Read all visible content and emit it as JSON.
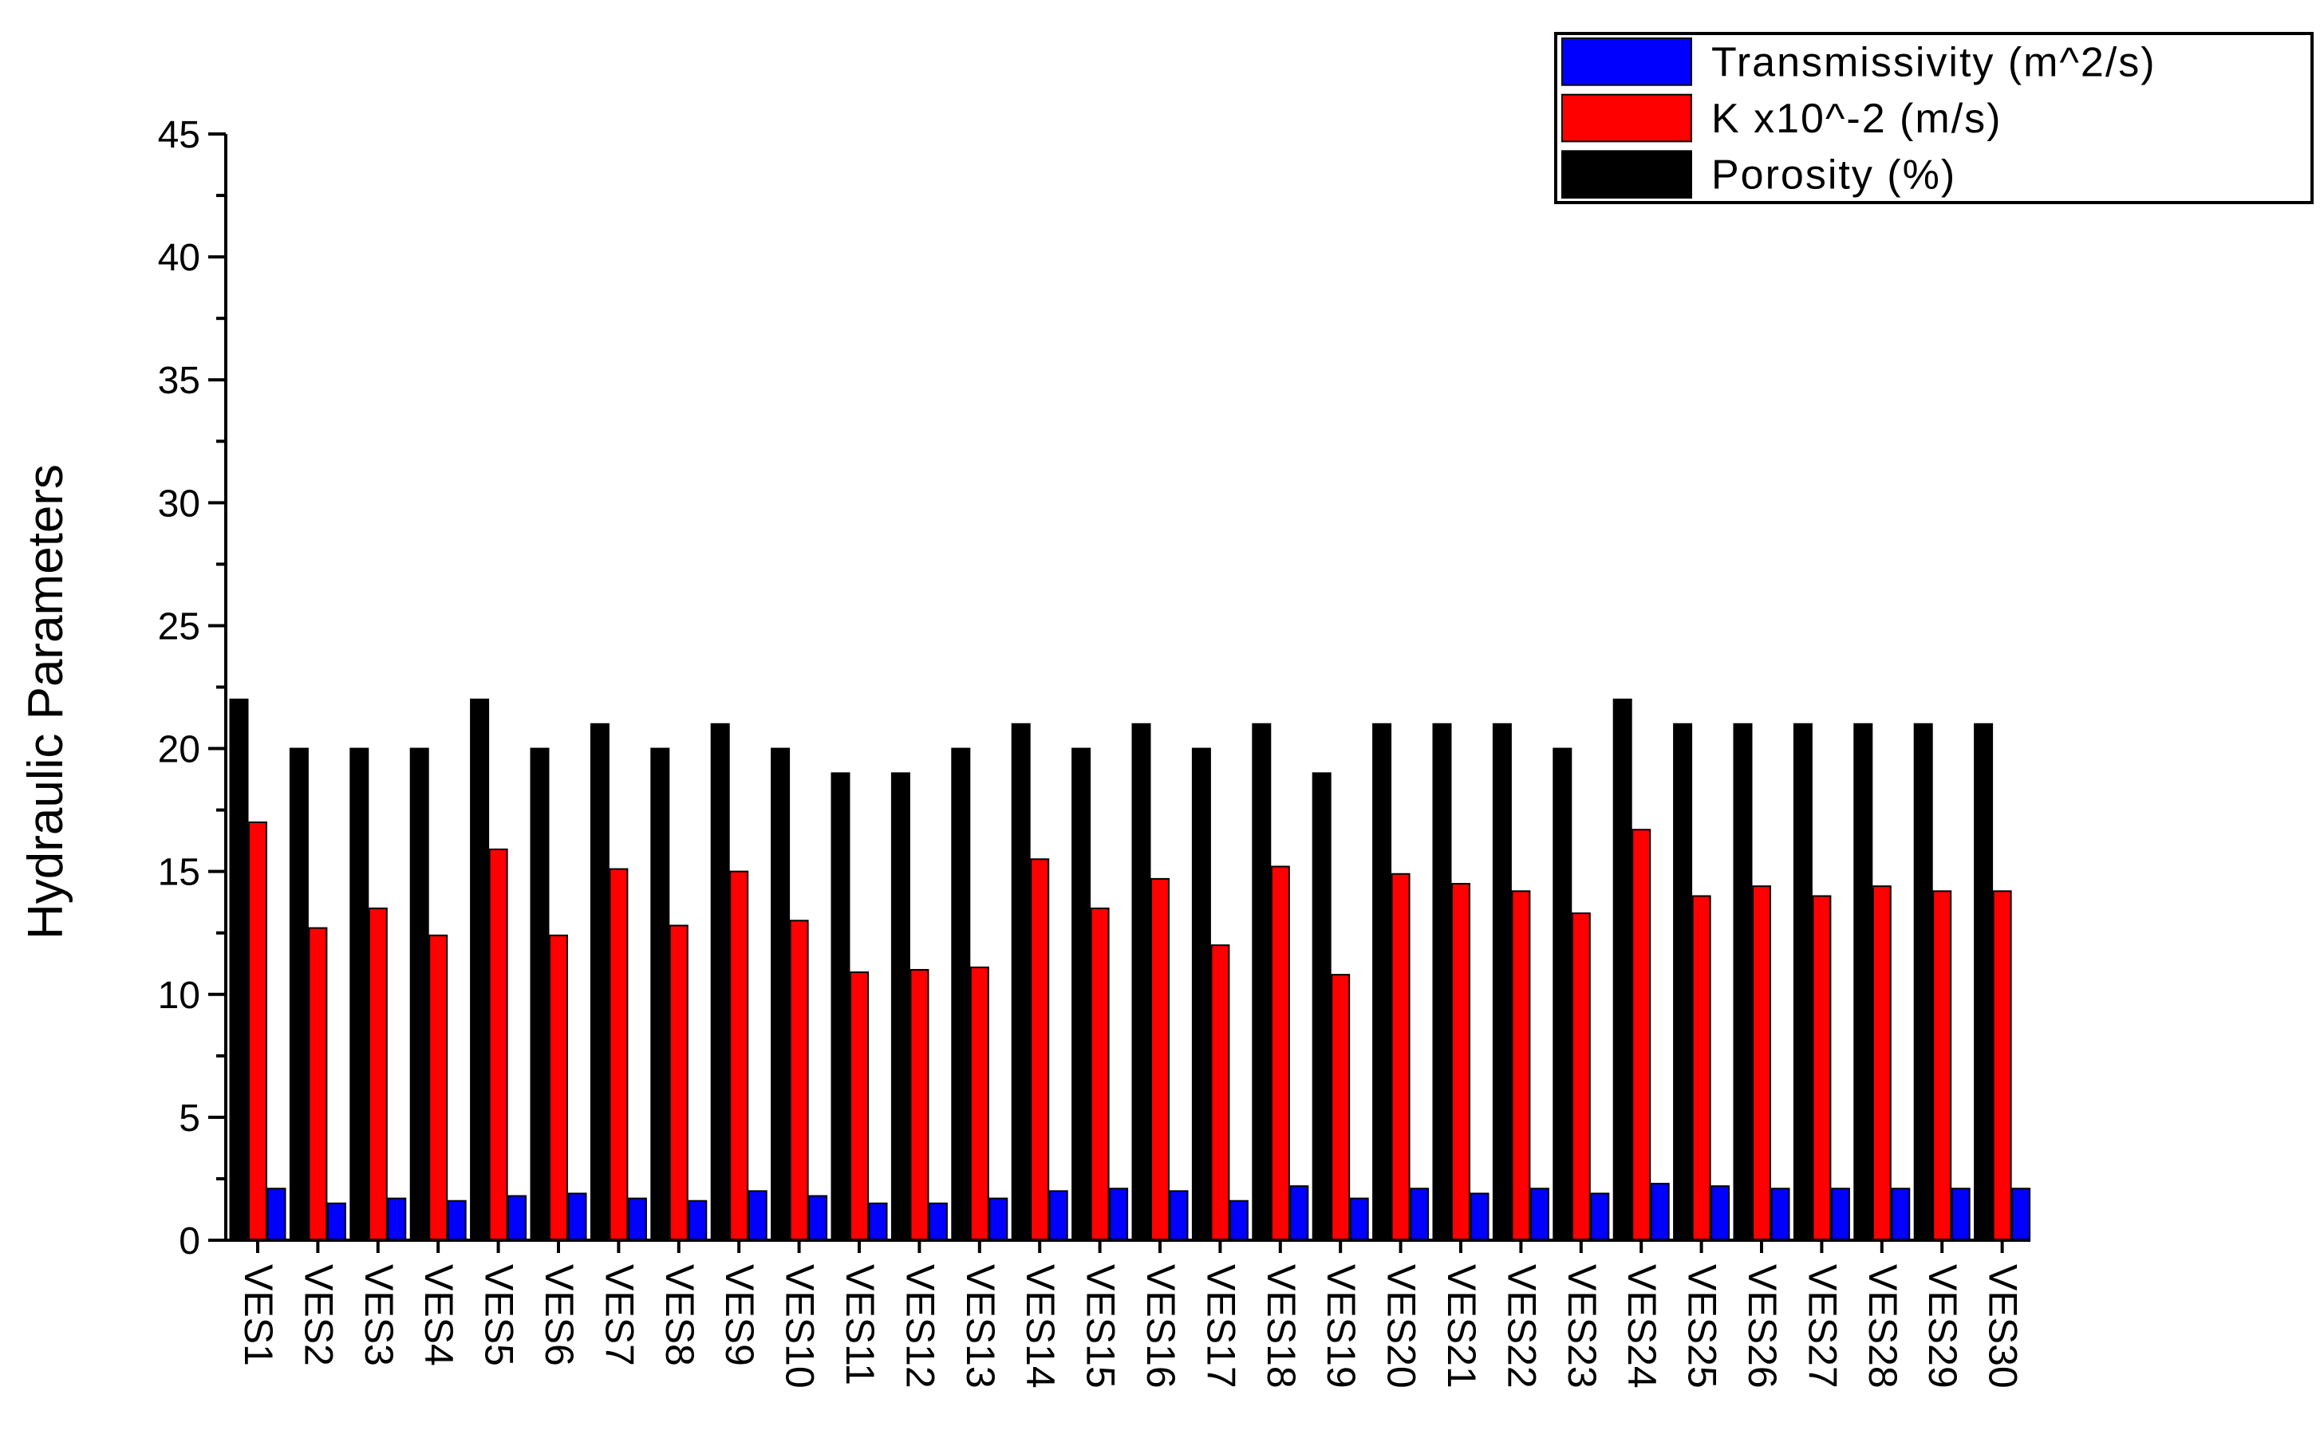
{
  "chart_data": {
    "type": "bar",
    "xlabel": "",
    "ylabel": "Hydraulic Parameters",
    "ylim": [
      0,
      45
    ],
    "yticks": [
      0,
      5,
      10,
      15,
      20,
      25,
      30,
      35,
      40,
      45
    ],
    "grid": false,
    "legend_position": "top-right",
    "categories": [
      "VES1",
      "VES2",
      "VES3",
      "VES4",
      "VES5",
      "VES6",
      "VES7",
      "VES8",
      "VES9",
      "VES10",
      "VES11",
      "VES12",
      "VES13",
      "VES14",
      "VES15",
      "VES16",
      "VES17",
      "VES18",
      "VES19",
      "VES20",
      "VES21",
      "VES22",
      "VES23",
      "VES24",
      "VES25",
      "VES26",
      "VES27",
      "VES28",
      "VES29",
      "VES30"
    ],
    "series": [
      {
        "name": "Porosity (%)",
        "color": "#000000",
        "values": [
          22,
          20,
          20,
          20,
          22,
          20,
          21,
          20,
          21,
          20,
          19,
          19,
          20,
          21,
          20,
          21,
          20,
          21,
          19,
          21,
          21,
          21,
          20,
          22,
          21,
          21,
          21,
          21,
          21,
          21
        ]
      },
      {
        "name": "K x10^-2 (m/s)",
        "color": "#ff0000",
        "values": [
          17,
          12.7,
          13.5,
          12.4,
          15.9,
          12.4,
          15.1,
          12.8,
          15,
          13,
          10.9,
          11,
          11.1,
          15.5,
          13.5,
          14.7,
          12,
          15.2,
          10.8,
          14.9,
          14.5,
          14.2,
          13.3,
          16.7,
          14,
          14.4,
          14,
          14.4,
          14.2,
          14.2
        ]
      },
      {
        "name": "Transmissivity (m^2/s)",
        "color": "#0000ff",
        "values": [
          2.1,
          1.5,
          1.7,
          1.6,
          1.8,
          1.9,
          1.7,
          1.6,
          2,
          1.8,
          1.5,
          1.5,
          1.7,
          2,
          2.1,
          2,
          1.6,
          2.2,
          1.7,
          2.1,
          1.9,
          2.1,
          1.9,
          2.3,
          2.2,
          2.1,
          2.1,
          2.1,
          2.1,
          2.1
        ]
      }
    ],
    "legend_order": [
      "Transmissivity (m^2/s)",
      "K x10^-2 (m/s)",
      "Porosity (%)"
    ]
  }
}
